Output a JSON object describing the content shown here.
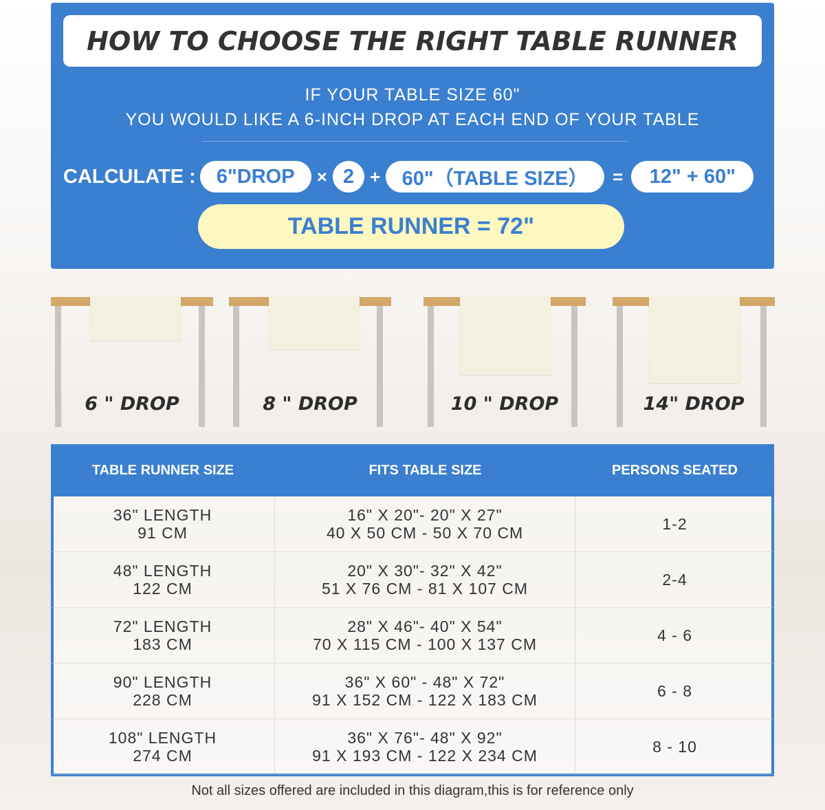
{
  "title": "HOW TO CHOOSE THE RIGHT TABLE RUNNER",
  "example": {
    "line1": "IF YOUR TABLE SIZE 60\"",
    "line2": "YOU WOULD LIKE A 6-INCH DROP AT EACH END OF YOUR TABLE"
  },
  "calc": {
    "label": "CALCULATE :",
    "drop": "6\"DROP",
    "times": "×",
    "multiplier": "2",
    "plus": "+",
    "table": "60\"（TABLE SIZE）",
    "equals": "=",
    "sum": "12\" + 60\"",
    "result": "TABLE RUNNER = 72\""
  },
  "drops": [
    {
      "label": "6 \" DROP",
      "inches": 6
    },
    {
      "label": "8 \" DROP",
      "inches": 8
    },
    {
      "label": "10 \" DROP",
      "inches": 10
    },
    {
      "label": "14\" DROP",
      "inches": 14
    }
  ],
  "colors": {
    "blue": "#3a7fd0",
    "yellow": "#fdf8c0",
    "tabletop": "#d4a76a",
    "leg": "#c9c4bf",
    "runner": "#f3f0e0"
  },
  "table": {
    "headers": [
      "TABLE RUNNER SIZE",
      "FITS TABLE SIZE",
      "PERSONS SEATED"
    ],
    "rows": [
      {
        "size": [
          "36\" LENGTH",
          "91 CM"
        ],
        "fits": [
          "16\" X 20\"- 20\" X 27\"",
          "40 X 50 CM - 50 X 70 CM"
        ],
        "persons": "1-2"
      },
      {
        "size": [
          "48\" LENGTH",
          "122 CM"
        ],
        "fits": [
          "20\" X 30\"- 32\" X 42\"",
          "51 X 76 CM - 81 X 107 CM"
        ],
        "persons": "2-4"
      },
      {
        "size": [
          "72\" LENGTH",
          "183 CM"
        ],
        "fits": [
          "28\" X 46\"- 40\" X 54\"",
          "70 X 115 CM - 100 X 137 CM"
        ],
        "persons": "4 - 6"
      },
      {
        "size": [
          "90\" LENGTH",
          "228 CM"
        ],
        "fits": [
          "36\" X 60\" - 48\" X 72\"",
          "91 X 152 CM - 122 X 183 CM"
        ],
        "persons": "6 - 8"
      },
      {
        "size": [
          "108\" LENGTH",
          "274 CM"
        ],
        "fits": [
          "36\" X 76\"- 48\" X 92\"",
          "91 X 193 CM - 122 X 234 CM"
        ],
        "persons": "8 - 10"
      }
    ]
  },
  "footnote": "Not all sizes offered are included in this diagram,this is for reference only"
}
